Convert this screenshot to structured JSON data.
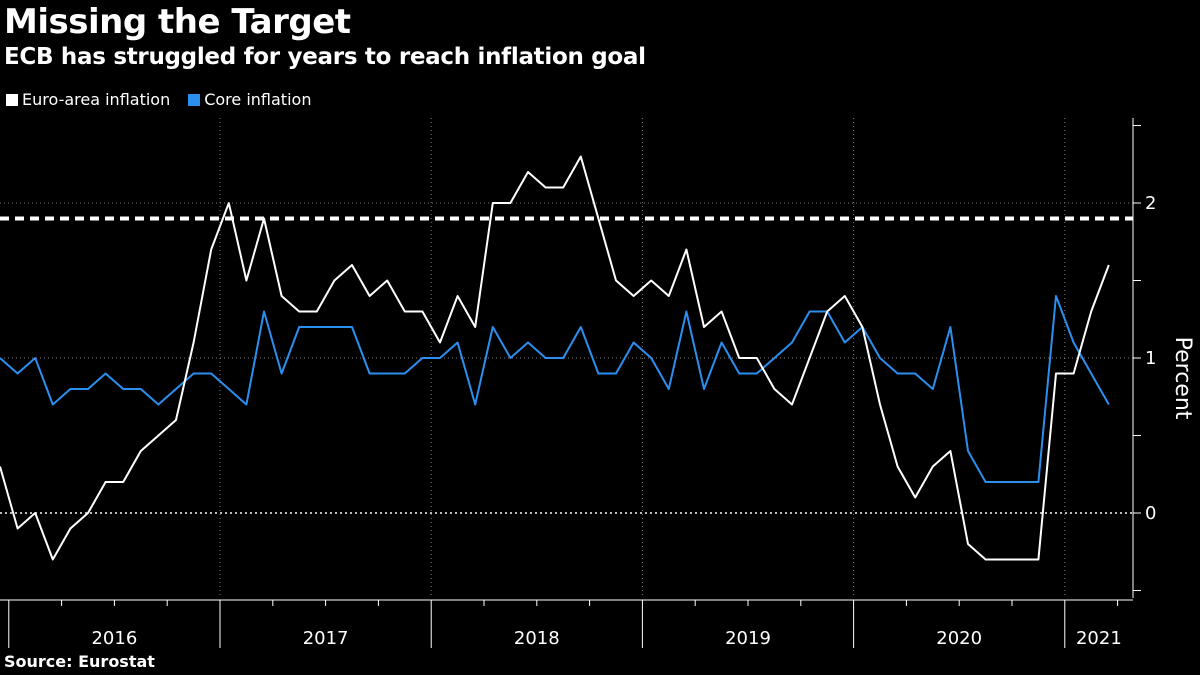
{
  "chart_data": {
    "type": "line",
    "title": "Missing the Target",
    "subtitle": "ECB has struggled for years to reach inflation goal",
    "ylabel": "Percent",
    "ylim": [
      -0.55,
      2.5
    ],
    "y_ticks": [
      0,
      1,
      2
    ],
    "x_tick_labels": [
      "2016",
      "2017",
      "2018",
      "2019",
      "2020",
      "2021"
    ],
    "x_start": "2015-12",
    "target_line": 1.9,
    "grid": true,
    "legend_position": "top-left",
    "source": "Source: Eurostat",
    "series": [
      {
        "name": "Euro-area inflation",
        "color": "#ffffff",
        "values": [
          0.3,
          -0.1,
          0.0,
          -0.3,
          -0.1,
          0.0,
          0.2,
          0.2,
          0.4,
          0.5,
          0.6,
          1.1,
          1.7,
          2.0,
          1.5,
          1.9,
          1.4,
          1.3,
          1.3,
          1.5,
          1.6,
          1.4,
          1.5,
          1.3,
          1.3,
          1.1,
          1.4,
          1.2,
          2.0,
          2.0,
          2.2,
          2.1,
          2.1,
          2.3,
          1.9,
          1.5,
          1.4,
          1.5,
          1.4,
          1.7,
          1.2,
          1.3,
          1.0,
          1.0,
          0.8,
          0.7,
          1.0,
          1.3,
          1.4,
          1.2,
          0.7,
          0.3,
          0.1,
          0.3,
          0.4,
          -0.2,
          -0.3,
          -0.3,
          -0.3,
          -0.3,
          0.9,
          0.9,
          1.3,
          1.6
        ]
      },
      {
        "name": "Core inflation",
        "color": "#2b8ff0",
        "values": [
          1.0,
          0.9,
          1.0,
          0.7,
          0.8,
          0.8,
          0.9,
          0.8,
          0.8,
          0.7,
          0.8,
          0.9,
          0.9,
          0.8,
          0.7,
          1.3,
          0.9,
          1.2,
          1.2,
          1.2,
          1.2,
          0.9,
          0.9,
          0.9,
          1.0,
          1.0,
          1.1,
          0.7,
          1.2,
          1.0,
          1.1,
          1.0,
          1.0,
          1.2,
          0.9,
          0.9,
          1.1,
          1.0,
          0.8,
          1.3,
          0.8,
          1.1,
          0.9,
          0.9,
          1.0,
          1.1,
          1.3,
          1.3,
          1.1,
          1.2,
          1.0,
          0.9,
          0.9,
          0.8,
          1.2,
          0.4,
          0.2,
          0.2,
          0.2,
          0.2,
          1.4,
          1.1,
          0.9,
          0.7
        ]
      }
    ]
  }
}
